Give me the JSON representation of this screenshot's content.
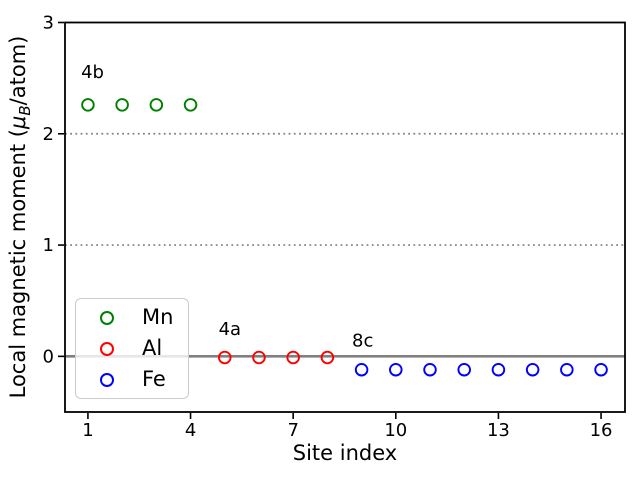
{
  "chart_data": {
    "type": "scatter",
    "title": "",
    "xlabel": "Site index",
    "ylabel": "Local magnetic moment (μB/atom)",
    "ylabel_parts": {
      "prefix": "Local magnetic moment (",
      "mu": "μ",
      "sub": "B",
      "suffix": "/atom)"
    },
    "xlim": [
      0.33,
      16.7
    ],
    "ylim": [
      -0.5,
      3.0
    ],
    "xticks": [
      1,
      4,
      7,
      10,
      13,
      16
    ],
    "yticks": [
      0,
      1,
      2,
      3
    ],
    "gridlines_y": [
      1,
      2
    ],
    "zero_line_y": 0,
    "grid_style": "dotted",
    "colors": {
      "mn": "#008000",
      "al": "#ff0000",
      "fe": "#0000ff",
      "zero_line": "#808080",
      "grid": "#7f7f7f"
    },
    "series": [
      {
        "name": "Mn",
        "wyckoff_site": "4b",
        "color": "#008000",
        "sites": [
          1,
          2,
          3,
          4
        ],
        "values": [
          2.26,
          2.26,
          2.26,
          2.26
        ]
      },
      {
        "name": "Al",
        "wyckoff_site": "4a",
        "color": "#ff0000",
        "sites": [
          5,
          6,
          7,
          8
        ],
        "values": [
          -0.01,
          -0.01,
          -0.01,
          -0.01
        ]
      },
      {
        "name": "Fe",
        "wyckoff_site": "8c",
        "color": "#0000ff",
        "sites": [
          9,
          10,
          11,
          12,
          13,
          14,
          15,
          16
        ],
        "values": [
          -0.12,
          -0.12,
          -0.12,
          -0.12,
          -0.12,
          -0.12,
          -0.12,
          -0.12
        ]
      }
    ],
    "annotations": [
      {
        "text": "4b",
        "x": 0.8,
        "y": 2.5
      },
      {
        "text": "4a",
        "x": 4.82,
        "y": 0.19
      },
      {
        "text": "8c",
        "x": 8.72,
        "y": 0.09
      }
    ],
    "legend": {
      "position": "lower left",
      "entries": [
        {
          "label": "Mn",
          "color": "#008000"
        },
        {
          "label": "Al",
          "color": "#ff0000"
        },
        {
          "label": "Fe",
          "color": "#0000ff"
        }
      ]
    }
  }
}
